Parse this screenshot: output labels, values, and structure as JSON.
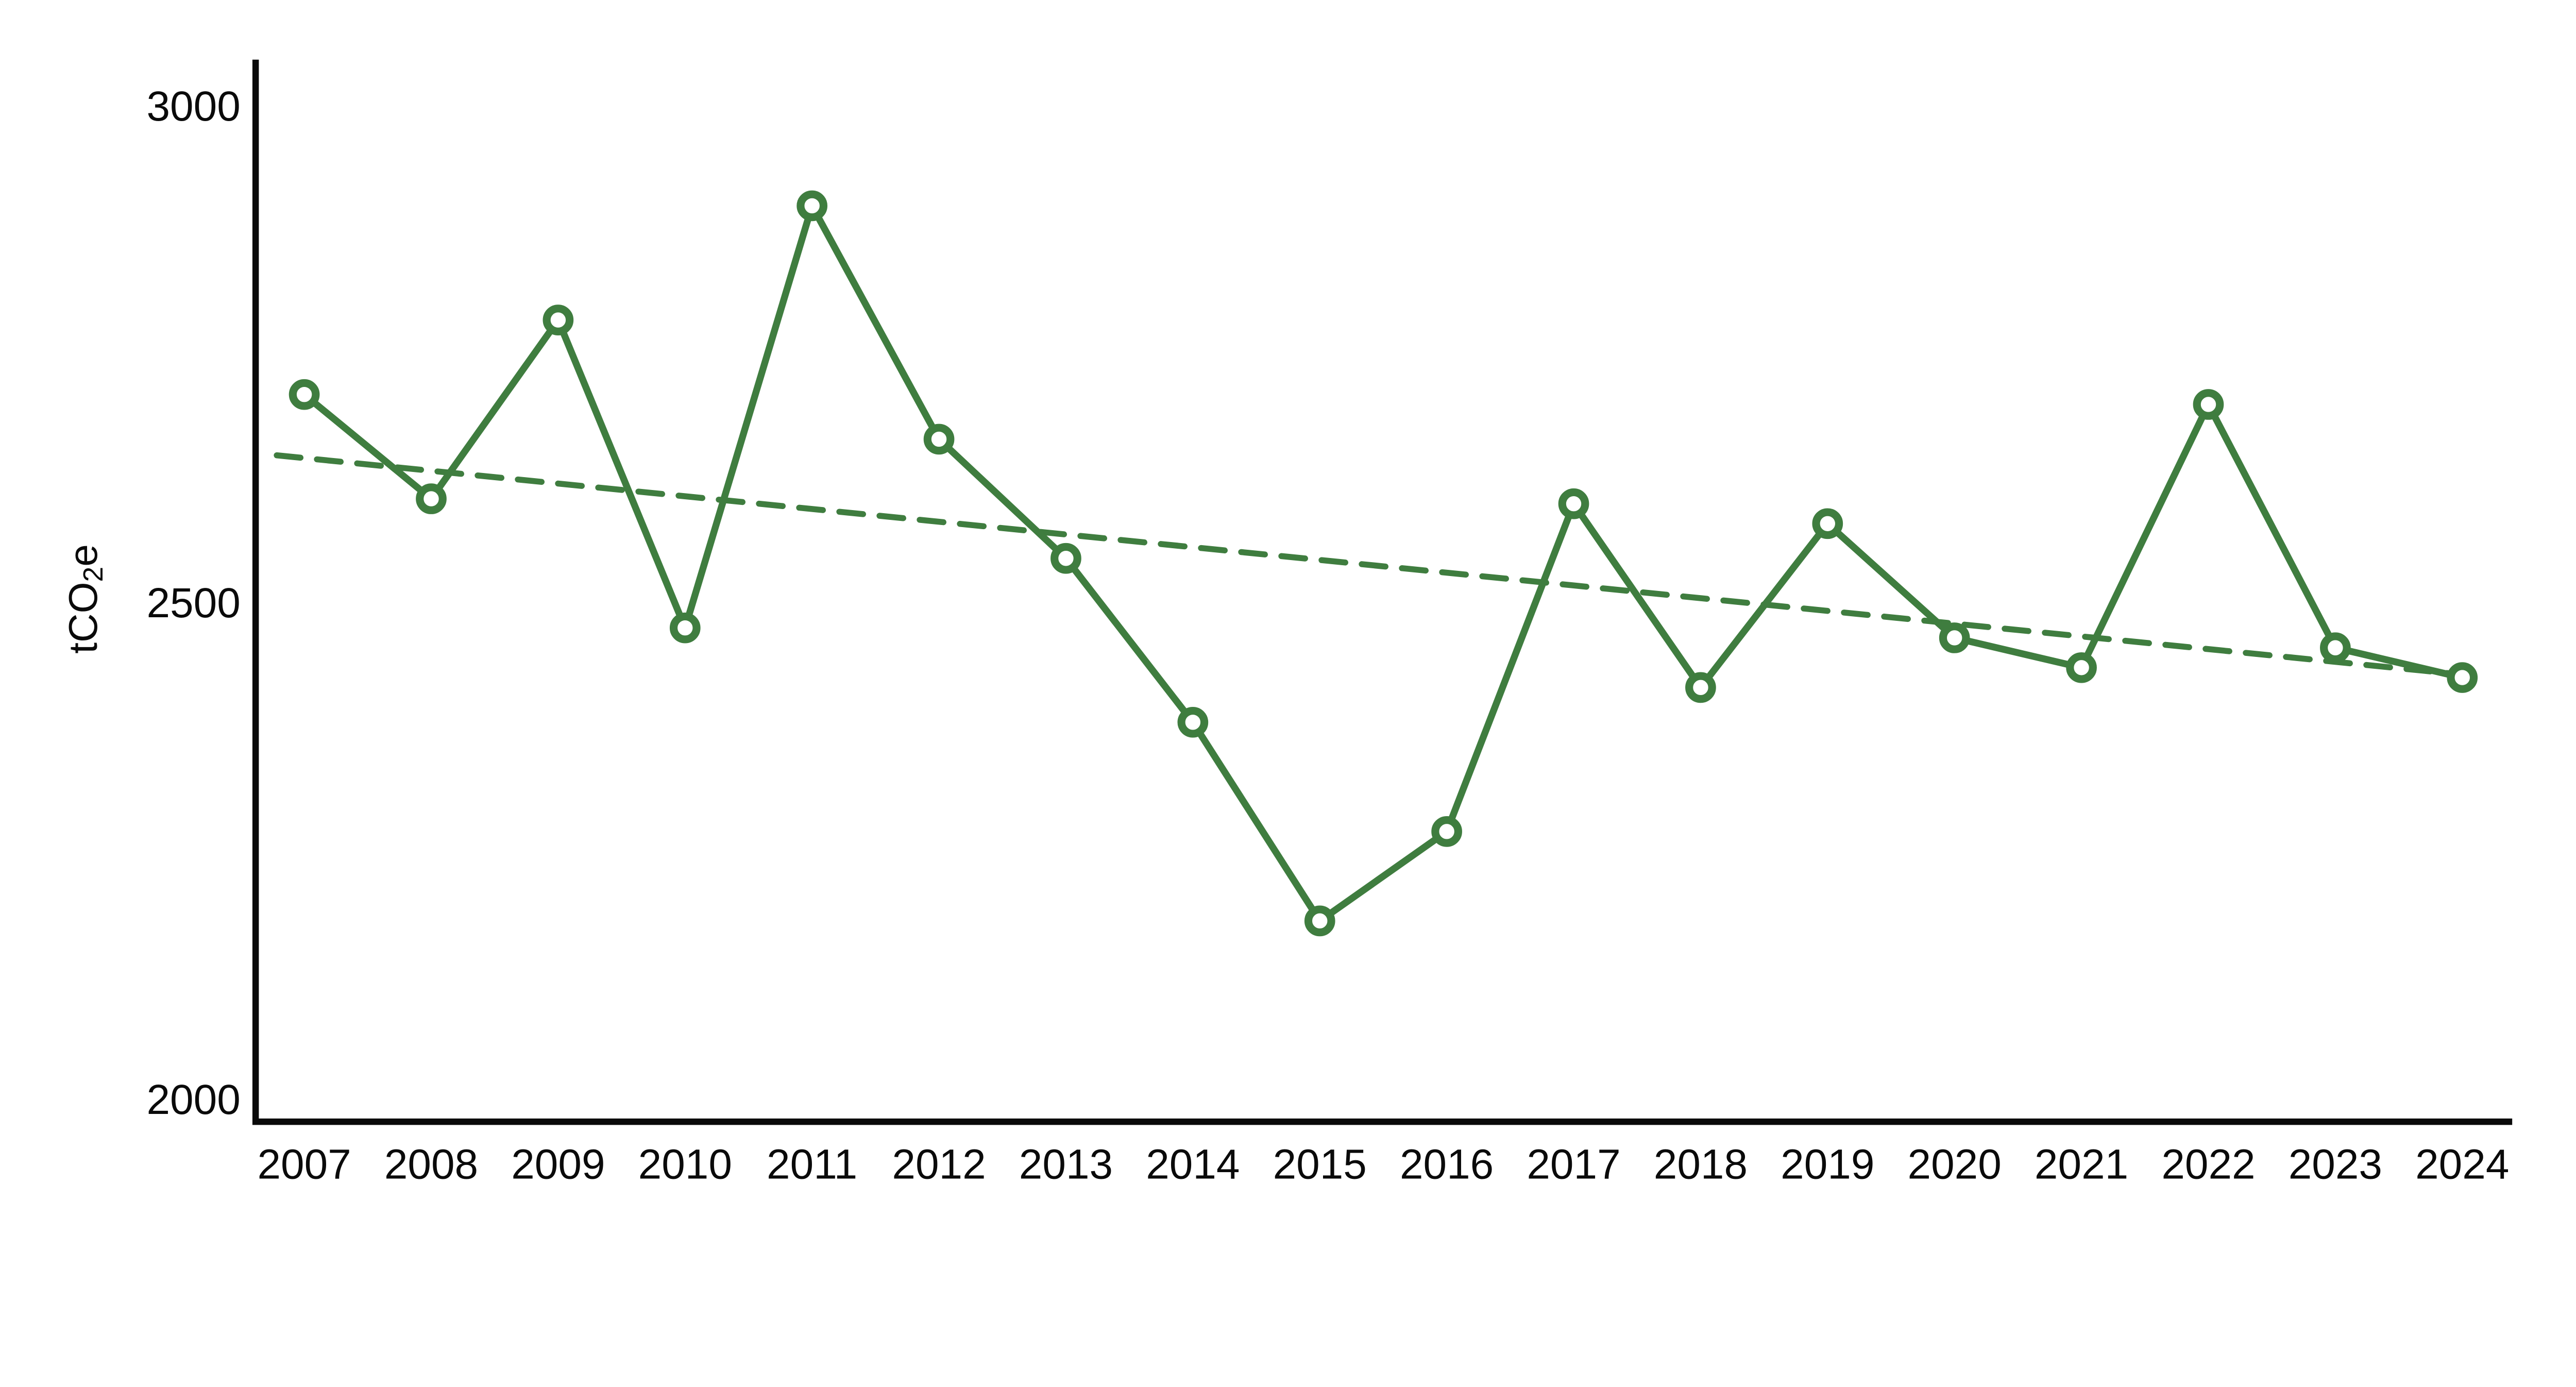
{
  "chart_data": {
    "type": "line",
    "title": "",
    "xlabel": "",
    "ylabel": {
      "pre": "tCO",
      "sub": "2",
      "post": "e"
    },
    "categories": [
      "2007",
      "2008",
      "2009",
      "2010",
      "2011",
      "2012",
      "2013",
      "2014",
      "2015",
      "2016",
      "2017",
      "2018",
      "2019",
      "2020",
      "2021",
      "2022",
      "2023",
      "2024"
    ],
    "series": [
      {
        "name": "tCO2e",
        "values": [
          2710,
          2605,
          2785,
          2475,
          2900,
          2665,
          2545,
          2380,
          2180,
          2270,
          2600,
          2415,
          2580,
          2465,
          2435,
          2700,
          2455,
          2425
        ]
      }
    ],
    "trendline": {
      "style": "dashed",
      "start_category": "2007",
      "end_category": "2024",
      "start_value": 2646,
      "end_value": 2428
    },
    "yticks": [
      {
        "label": "3000",
        "value": 3000
      },
      {
        "label": "2500",
        "value": 2500
      },
      {
        "label": "2000",
        "value": 2000
      }
    ],
    "ylim": [
      1978,
      3047
    ],
    "grid": false,
    "legend": false
  },
  "colors": {
    "line": "#3F7D3F",
    "trend": "#3F7D3F",
    "marker_fill": "#FFFFFF",
    "axis": "#0a0a0a",
    "text": "#0a0a0a",
    "background": "#FFFFFF"
  }
}
